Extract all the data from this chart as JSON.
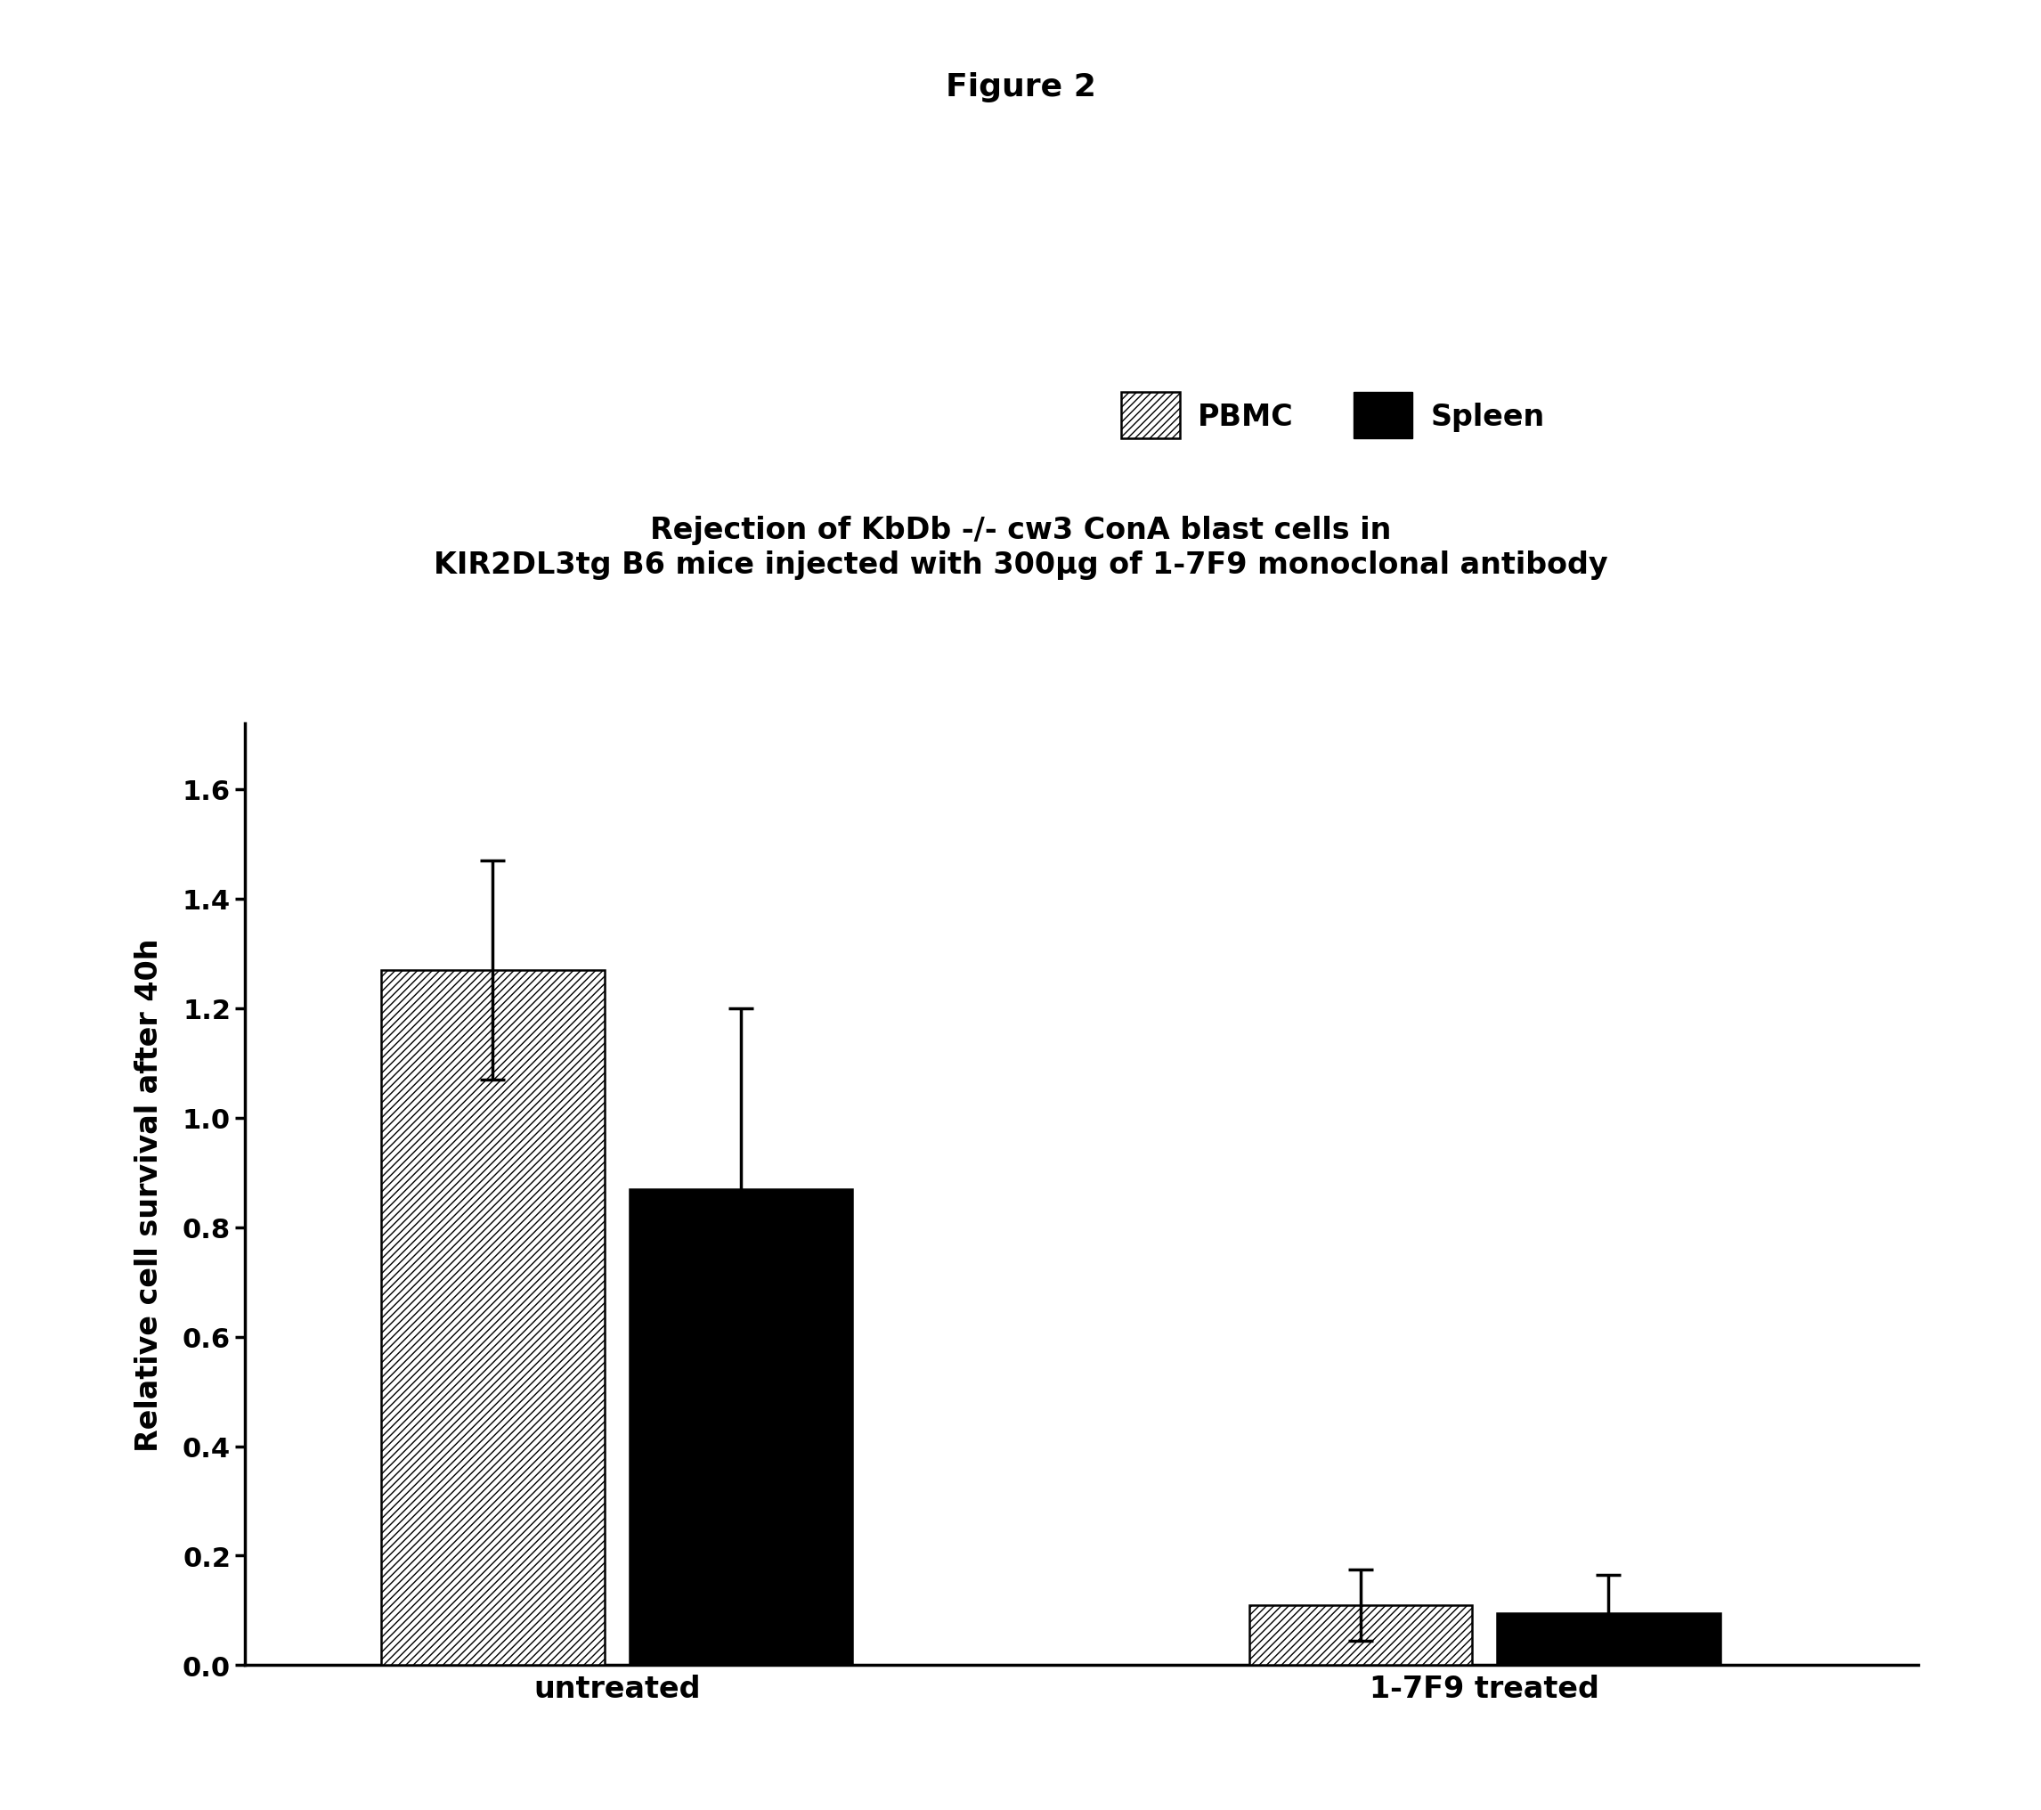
{
  "figure_title": "Figure 2",
  "chart_title_line1": "Rejection of KbDb -/- cw3 ConA blast cells in",
  "chart_title_line2": "KIR2DL3tg B6 mice injected with 300μg of 1-7F9 monoclonal antibody",
  "groups": [
    "untreated",
    "1-7F9 treated"
  ],
  "series": [
    "PBMC",
    "Spleen"
  ],
  "values": [
    [
      1.27,
      0.87
    ],
    [
      0.11,
      0.095
    ]
  ],
  "errors": [
    [
      0.2,
      0.33
    ],
    [
      0.065,
      0.07
    ]
  ],
  "ylabel": "Relative cell survival after 40h",
  "ylim": [
    0.0,
    1.72
  ],
  "yticks": [
    0.0,
    0.2,
    0.4,
    0.6,
    0.8,
    1.0,
    1.2,
    1.4,
    1.6
  ],
  "bar_width": 0.18,
  "pbmc_hatch": "////",
  "pbmc_facecolor": "white",
  "pbmc_edgecolor": "black",
  "spleen_facecolor": "black",
  "spleen_edgecolor": "black",
  "background_color": "white",
  "figure_title_fontsize": 26,
  "chart_title_fontsize": 24,
  "axis_label_fontsize": 24,
  "tick_fontsize": 22,
  "legend_fontsize": 24,
  "xlabel_fontsize": 24,
  "group_centers": [
    0.3,
    1.0
  ],
  "xlim": [
    0.0,
    1.35
  ]
}
